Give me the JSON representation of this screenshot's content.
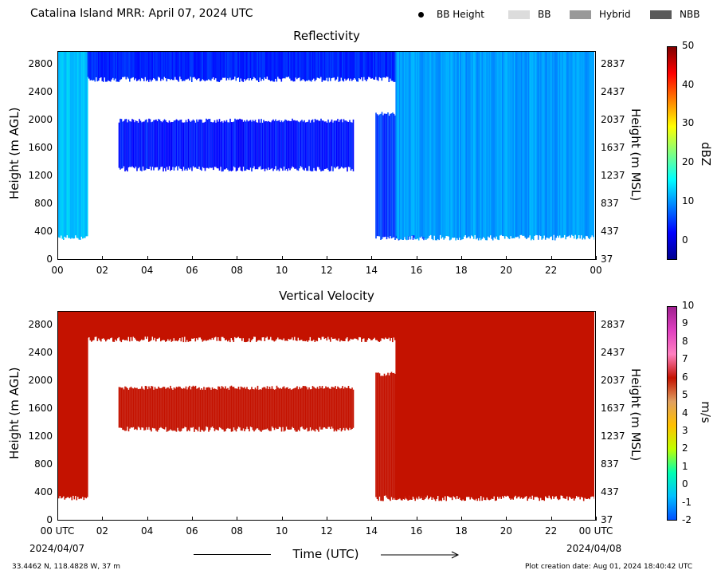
{
  "header": {
    "title": "Catalina Island MRR:  April 07, 2024 UTC",
    "legend": [
      {
        "label": "BB Height",
        "kind": "dot",
        "color": "#000000"
      },
      {
        "label": "BB",
        "kind": "swatch",
        "color": "#dcdcdc"
      },
      {
        "label": "Hybrid",
        "kind": "swatch",
        "color": "#999999"
      },
      {
        "label": "NBB",
        "kind": "swatch",
        "color": "#5a5a5a"
      }
    ]
  },
  "colors": {
    "velocity_fill": "#c41200",
    "dbz_colormap": [
      "#00008f",
      "#0000ff",
      "#0080ff",
      "#00ffff",
      "#80ff80",
      "#ffff00",
      "#ff8000",
      "#ff0000",
      "#800000"
    ],
    "vel_colormap": [
      "#0050ff",
      "#00c0ff",
      "#00ffb0",
      "#c0ff00",
      "#ffc000",
      "#e0a060",
      "#c41200",
      "#ff80c0",
      "#e040c0",
      "#a02090"
    ]
  },
  "chart_data": [
    {
      "type": "heatmap",
      "title": "Reflectivity",
      "x_ticks": [
        "00",
        "02",
        "04",
        "06",
        "08",
        "10",
        "12",
        "14",
        "16",
        "18",
        "20",
        "22",
        "00"
      ],
      "xlim": [
        0,
        24
      ],
      "ylabel": "Height (m AGL)",
      "y_ticks": [
        "0",
        "400",
        "800",
        "1200",
        "1600",
        "2000",
        "2400",
        "2800"
      ],
      "ylim": [
        0,
        3000
      ],
      "ylabel_right": "Height (m MSL)",
      "y_ticks_right": [
        "37",
        "437",
        "837",
        "1237",
        "1637",
        "2037",
        "2437",
        "2837"
      ],
      "colorbar_label": "dBZ",
      "colorbar_ticks": [
        "50",
        "40",
        "30",
        "20",
        "10",
        "0"
      ],
      "colorbar_range": [
        -5,
        50
      ],
      "echo_regions": [
        {
          "t_start": 0.0,
          "t_end": 1.3,
          "h_bottom": 300,
          "h_top": 3000,
          "dbz": 10
        },
        {
          "t_start": 1.3,
          "t_end": 15.1,
          "h_bottom": 2600,
          "h_top": 3000,
          "dbz": 2
        },
        {
          "t_start": 2.7,
          "t_end": 13.2,
          "h_bottom": 1300,
          "h_top": 2000,
          "dbz": 1
        },
        {
          "t_start": 14.2,
          "t_end": 16.5,
          "h_bottom": 300,
          "h_top": 2100,
          "dbz": 3
        },
        {
          "t_start": 15.1,
          "t_end": 24.0,
          "h_bottom": 300,
          "h_top": 3000,
          "dbz": 8
        }
      ]
    },
    {
      "type": "heatmap",
      "title": "Vertical Velocity",
      "x_ticks": [
        "00 UTC",
        "02",
        "04",
        "06",
        "08",
        "10",
        "12",
        "14",
        "16",
        "18",
        "20",
        "22",
        "00 UTC"
      ],
      "x_dates": [
        "2024/04/07",
        "2024/04/08"
      ],
      "xlim": [
        0,
        24
      ],
      "xlabel": "Time (UTC)",
      "ylabel": "Height (m AGL)",
      "y_ticks": [
        "0",
        "400",
        "800",
        "1200",
        "1600",
        "2000",
        "2400",
        "2800"
      ],
      "ylim": [
        0,
        3000
      ],
      "ylabel_right": "Height (m MSL)",
      "y_ticks_right": [
        "37",
        "437",
        "837",
        "1237",
        "1637",
        "2037",
        "2437",
        "2837"
      ],
      "colorbar_label": "m/s",
      "colorbar_ticks": [
        "10",
        "9",
        "8",
        "7",
        "6",
        "5",
        "4",
        "3",
        "2",
        "1",
        "0",
        "-1",
        "-2"
      ],
      "colorbar_range": [
        -2,
        10
      ],
      "echo_regions": [
        {
          "t_start": 0.0,
          "t_end": 1.3,
          "h_bottom": 300,
          "h_top": 3000,
          "velocity": 6
        },
        {
          "t_start": 1.3,
          "t_end": 15.1,
          "h_bottom": 2600,
          "h_top": 3000,
          "velocity": 6
        },
        {
          "t_start": 2.7,
          "t_end": 13.2,
          "h_bottom": 1300,
          "h_top": 1900,
          "velocity": 6
        },
        {
          "t_start": 14.2,
          "t_end": 16.5,
          "h_bottom": 300,
          "h_top": 2100,
          "velocity": 6
        },
        {
          "t_start": 15.1,
          "t_end": 24.0,
          "h_bottom": 300,
          "h_top": 3000,
          "velocity": 6
        }
      ]
    }
  ],
  "footer": {
    "location": "33.4462 N, 118.4828 W, 37 m",
    "creation": "Plot creation date: Aug 01, 2024 18:40:42 UTC"
  }
}
